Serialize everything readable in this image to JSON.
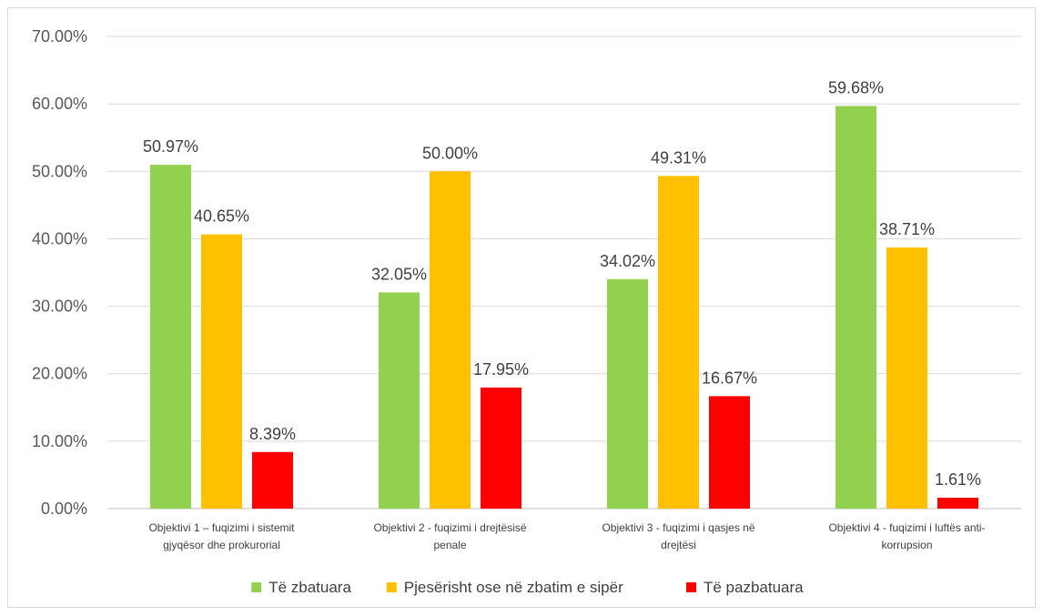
{
  "chart_data": {
    "type": "bar",
    "title": "",
    "xlabel": "",
    "ylabel": "",
    "ylim": [
      0,
      70
    ],
    "y_ticks": [
      "0.00%",
      "10.00%",
      "20.00%",
      "30.00%",
      "40.00%",
      "50.00%",
      "60.00%",
      "70.00%"
    ],
    "grid": true,
    "legend_position": "bottom",
    "categories": [
      [
        "Objektivi 1 – fuqizimi i sistemit",
        "gjyqësor dhe prokurorial"
      ],
      [
        "Objektivi 2 - fuqizimi i drejtësisë",
        "penale"
      ],
      [
        "Objektivi 3 - fuqizimi i qasjes në",
        "drejtësi"
      ],
      [
        "Objektivi 4 - fuqizimi i luftës anti-",
        "korrupsion"
      ]
    ],
    "series": [
      {
        "name": "Të zbatuara",
        "color": "#92d050",
        "values": [
          50.97,
          32.05,
          34.02,
          59.68
        ],
        "labels": [
          "50.97%",
          "32.05%",
          "34.02%",
          "59.68%"
        ]
      },
      {
        "name": "Pjesërisht ose në zbatim e sipër",
        "color": "#ffc000",
        "values": [
          40.65,
          50.0,
          49.31,
          38.71
        ],
        "labels": [
          "40.65%",
          "50.00%",
          "49.31%",
          "38.71%"
        ]
      },
      {
        "name": "Të pazbatuara",
        "color": "#ff0000",
        "values": [
          8.39,
          17.95,
          16.67,
          1.61
        ],
        "labels": [
          "8.39%",
          "17.95%",
          "16.67%",
          "1.61%"
        ]
      }
    ]
  }
}
